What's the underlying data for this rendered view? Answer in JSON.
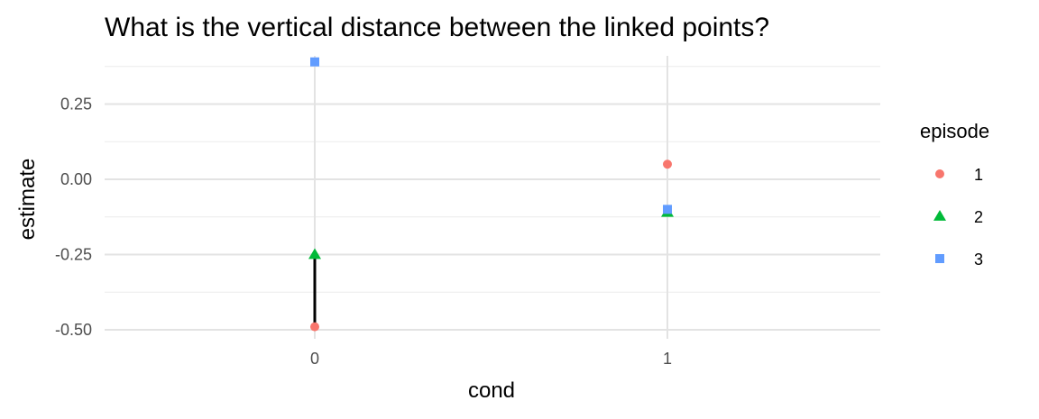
{
  "chart_data": {
    "type": "scatter",
    "title": "What is the vertical distance between the linked points?",
    "xlabel": "cond",
    "ylabel": "estimate",
    "x_categories": [
      "0",
      "1"
    ],
    "ylim": [
      -0.53,
      0.41
    ],
    "y_ticks": [
      -0.5,
      -0.25,
      0.0,
      0.25
    ],
    "y_tick_labels": [
      "-0.50",
      "-0.25",
      "0.00",
      "0.25"
    ],
    "grid": true,
    "legend": {
      "title": "episode",
      "position": "right"
    },
    "series": [
      {
        "name": "1",
        "shape": "circle",
        "color": "#F8766D",
        "points": [
          {
            "x": "0",
            "y": -0.49
          },
          {
            "x": "1",
            "y": 0.05
          }
        ]
      },
      {
        "name": "2",
        "shape": "triangle",
        "color": "#00BA38",
        "points": [
          {
            "x": "0",
            "y": -0.25
          },
          {
            "x": "1",
            "y": -0.11
          }
        ]
      },
      {
        "name": "3",
        "shape": "square",
        "color": "#619CFF",
        "points": [
          {
            "x": "0",
            "y": 0.39
          },
          {
            "x": "1",
            "y": -0.1
          }
        ]
      }
    ],
    "annotations": [
      {
        "type": "segment",
        "x": "0",
        "y_from": -0.49,
        "y_to": -0.25,
        "color": "#000000"
      }
    ]
  }
}
